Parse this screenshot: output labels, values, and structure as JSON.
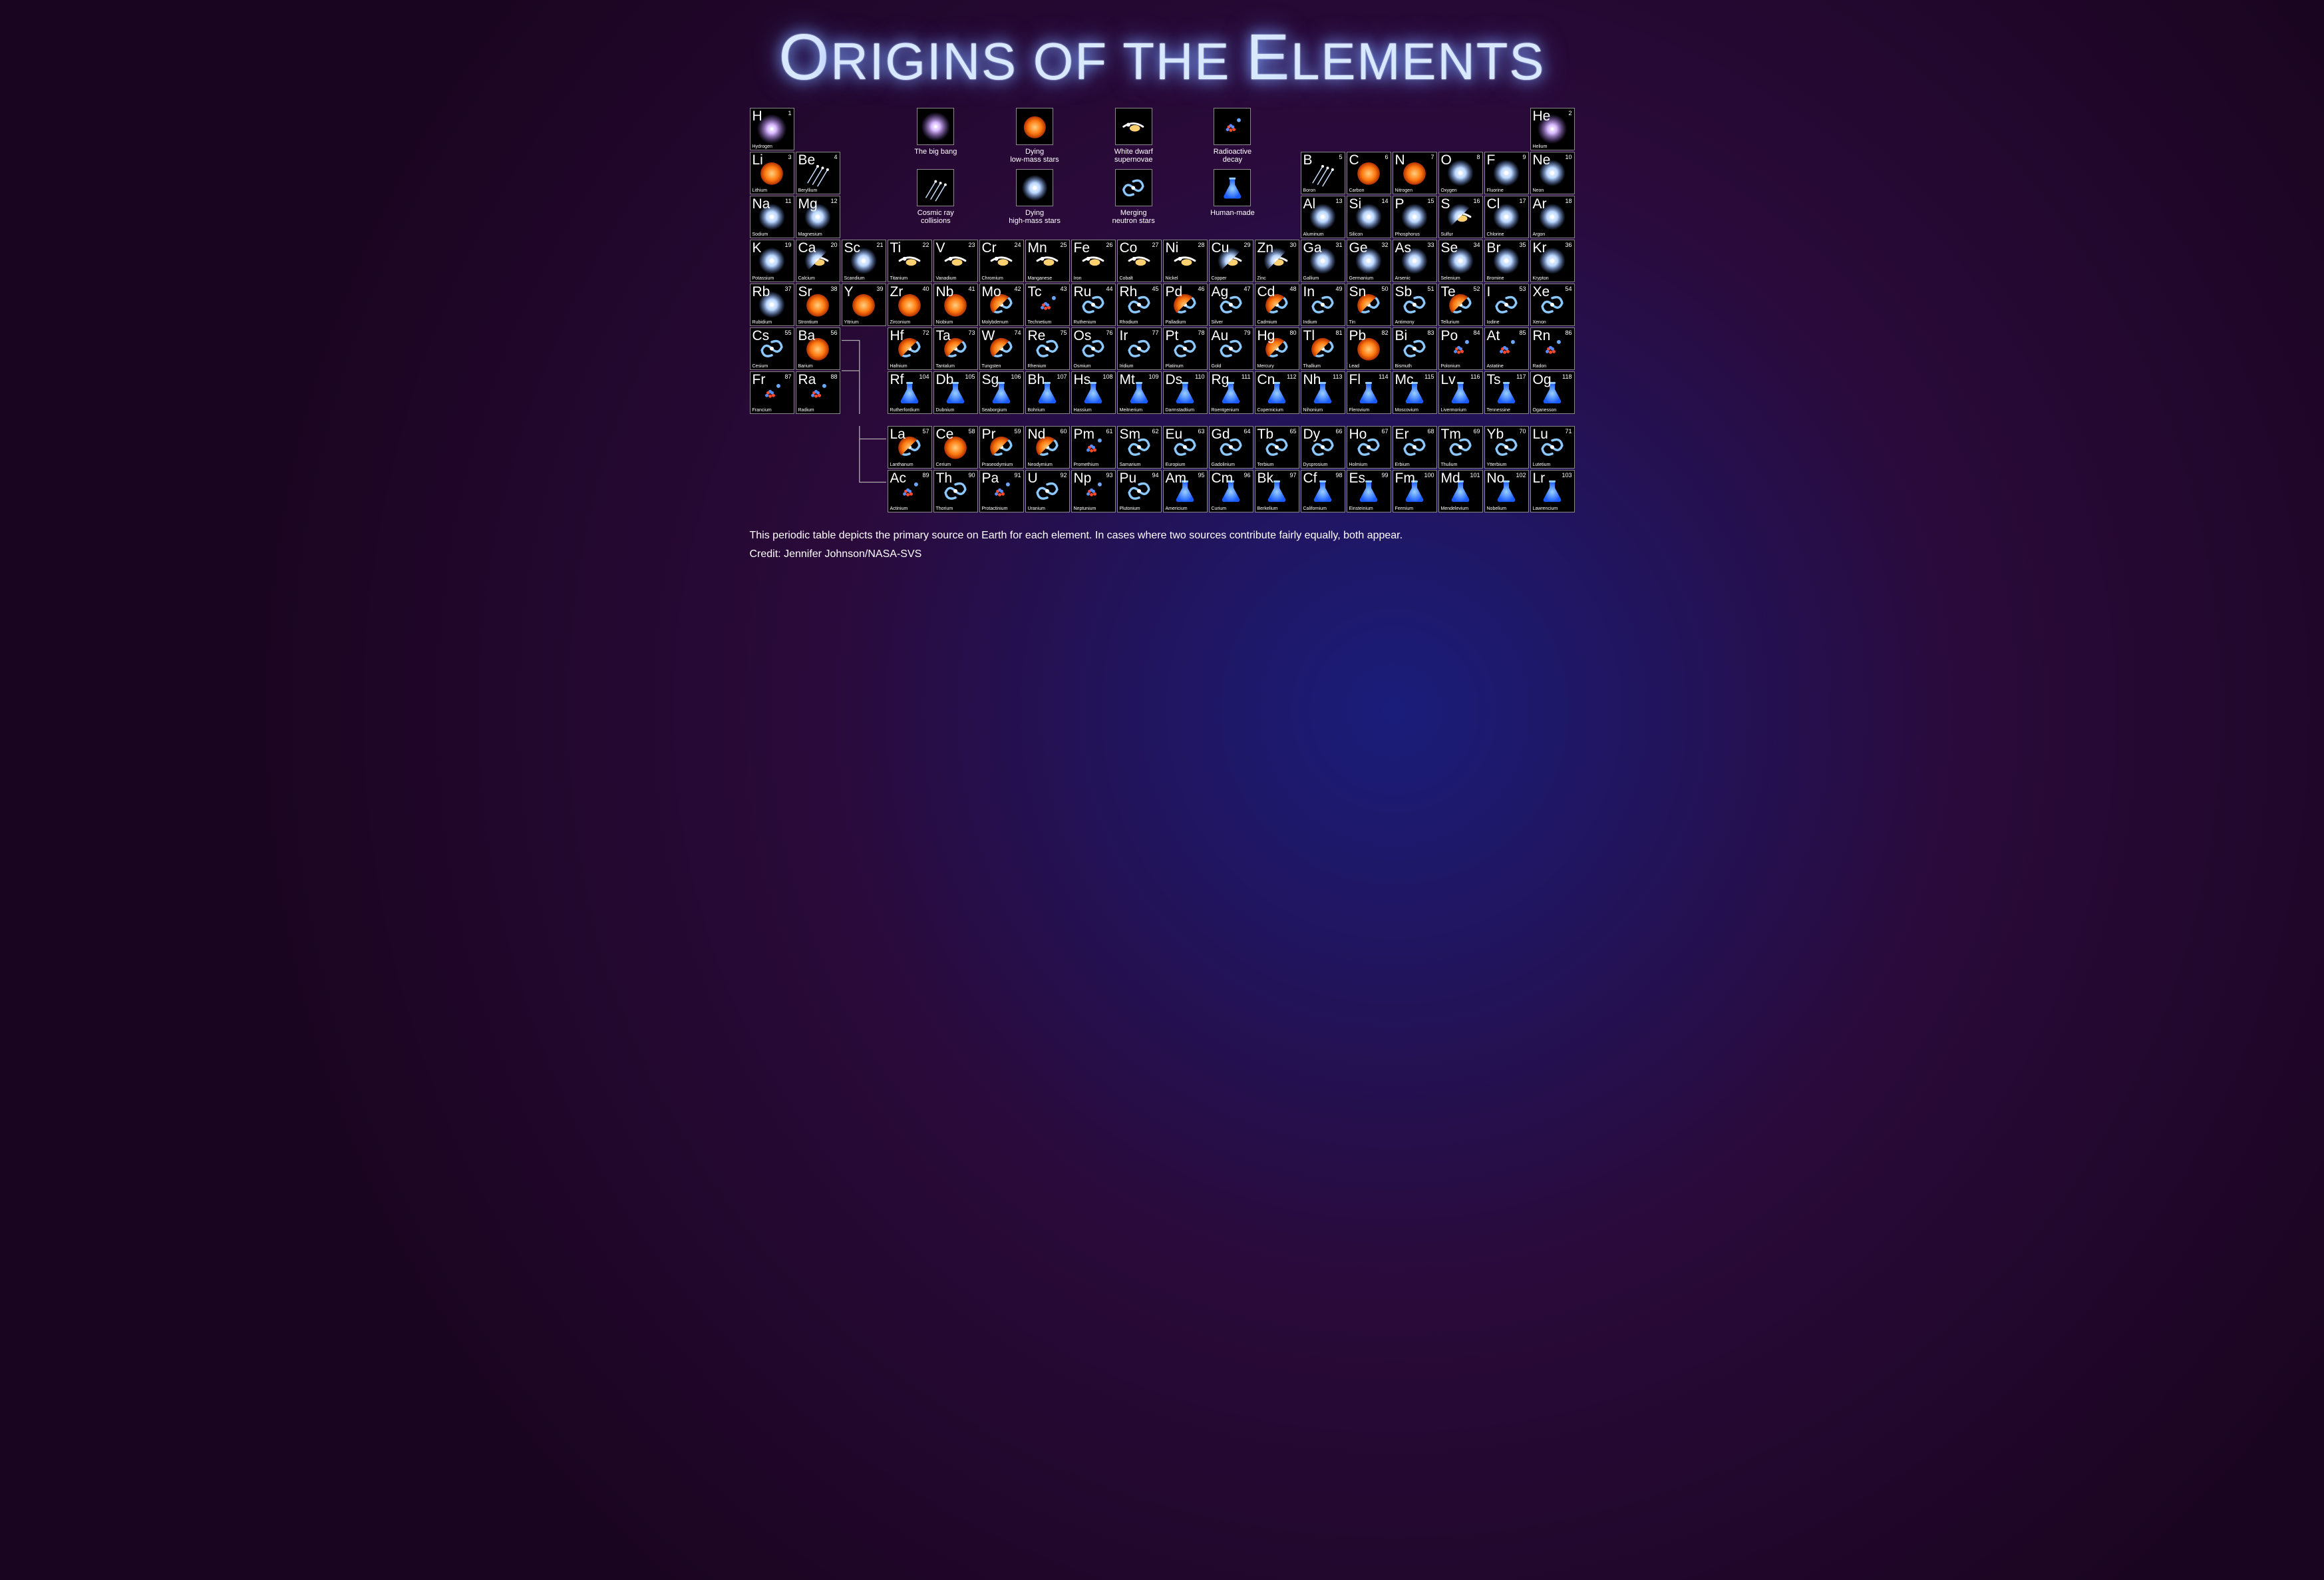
{
  "title_html": "<span class='big'>O</span>RIGINS OF THE <span class='big'>E</span>LEMENTS",
  "caption": "This periodic table depicts the primary source on Earth for each element. In cases where two sources contribute fairly equally, both appear.",
  "credit": "Credit: Jennifer Johnson/NASA-SVS",
  "colors": {
    "background_center": "#1a1d7a",
    "background_mid": "#2a0a3a",
    "background_edge": "#1a0520",
    "cell_border": "#888888",
    "cell_bg": "#000000",
    "text": "#ffffff",
    "title_glow": "#89b0ff"
  },
  "origin_icons": {
    "bigbang": {
      "label": "The big bang",
      "color": "#c9a8ff"
    },
    "lowmass": {
      "label": "Dying\nlow-mass stars",
      "color": "#ff8a1a"
    },
    "whitedwarf": {
      "label": "White dwarf\nsupernovae",
      "color": "#ffe38a"
    },
    "radioactive": {
      "label": "Radioactive\ndecay",
      "color": "#ff5a3a"
    },
    "cosmicray": {
      "label": "Cosmic ray\ncollisions",
      "color": "#b8d0ff"
    },
    "highmass": {
      "label": "Dying\nhigh-mass stars",
      "color": "#c0e0ff"
    },
    "merging": {
      "label": "Merging\nneutron stars",
      "color": "#6aa8ff"
    },
    "humanmade": {
      "label": "Human-made",
      "color": "#2a7cff"
    }
  },
  "legend_order": [
    [
      "bigbang",
      "lowmass",
      "whitedwarf",
      "radioactive"
    ],
    [
      "cosmicray",
      "highmass",
      "merging",
      "humanmade"
    ]
  ],
  "elements": [
    {
      "z": 1,
      "sym": "H",
      "name": "Hydrogen",
      "row": 1,
      "col": 1,
      "origin": [
        "bigbang"
      ]
    },
    {
      "z": 2,
      "sym": "He",
      "name": "Helium",
      "row": 1,
      "col": 18,
      "origin": [
        "bigbang"
      ]
    },
    {
      "z": 3,
      "sym": "Li",
      "name": "Lithium",
      "row": 2,
      "col": 1,
      "origin": [
        "lowmass"
      ]
    },
    {
      "z": 4,
      "sym": "Be",
      "name": "Beryllium",
      "row": 2,
      "col": 2,
      "origin": [
        "cosmicray"
      ]
    },
    {
      "z": 5,
      "sym": "B",
      "name": "Boron",
      "row": 2,
      "col": 13,
      "origin": [
        "cosmicray"
      ]
    },
    {
      "z": 6,
      "sym": "C",
      "name": "Carbon",
      "row": 2,
      "col": 14,
      "origin": [
        "lowmass"
      ]
    },
    {
      "z": 7,
      "sym": "N",
      "name": "Nitrogen",
      "row": 2,
      "col": 15,
      "origin": [
        "lowmass"
      ]
    },
    {
      "z": 8,
      "sym": "O",
      "name": "Oxygen",
      "row": 2,
      "col": 16,
      "origin": [
        "highmass"
      ]
    },
    {
      "z": 9,
      "sym": "F",
      "name": "Fluorine",
      "row": 2,
      "col": 17,
      "origin": [
        "highmass"
      ]
    },
    {
      "z": 10,
      "sym": "Ne",
      "name": "Neon",
      "row": 2,
      "col": 18,
      "origin": [
        "highmass"
      ]
    },
    {
      "z": 11,
      "sym": "Na",
      "name": "Sodium",
      "row": 3,
      "col": 1,
      "origin": [
        "highmass"
      ]
    },
    {
      "z": 12,
      "sym": "Mg",
      "name": "Magnesium",
      "row": 3,
      "col": 2,
      "origin": [
        "highmass"
      ]
    },
    {
      "z": 13,
      "sym": "Al",
      "name": "Aluminum",
      "row": 3,
      "col": 13,
      "origin": [
        "highmass"
      ]
    },
    {
      "z": 14,
      "sym": "Si",
      "name": "Silicon",
      "row": 3,
      "col": 14,
      "origin": [
        "highmass"
      ]
    },
    {
      "z": 15,
      "sym": "P",
      "name": "Phosphorus",
      "row": 3,
      "col": 15,
      "origin": [
        "highmass"
      ]
    },
    {
      "z": 16,
      "sym": "S",
      "name": "Sulfur",
      "row": 3,
      "col": 16,
      "origin": [
        "highmass",
        "whitedwarf"
      ]
    },
    {
      "z": 17,
      "sym": "Cl",
      "name": "Chlorine",
      "row": 3,
      "col": 17,
      "origin": [
        "highmass"
      ]
    },
    {
      "z": 18,
      "sym": "Ar",
      "name": "Argon",
      "row": 3,
      "col": 18,
      "origin": [
        "highmass"
      ]
    },
    {
      "z": 19,
      "sym": "K",
      "name": "Potassium",
      "row": 4,
      "col": 1,
      "origin": [
        "highmass"
      ]
    },
    {
      "z": 20,
      "sym": "Ca",
      "name": "Calcium",
      "row": 4,
      "col": 2,
      "origin": [
        "highmass",
        "whitedwarf"
      ]
    },
    {
      "z": 21,
      "sym": "Sc",
      "name": "Scandium",
      "row": 4,
      "col": 3,
      "origin": [
        "highmass"
      ]
    },
    {
      "z": 22,
      "sym": "Ti",
      "name": "Titanium",
      "row": 4,
      "col": 4,
      "origin": [
        "whitedwarf"
      ]
    },
    {
      "z": 23,
      "sym": "V",
      "name": "Vanadium",
      "row": 4,
      "col": 5,
      "origin": [
        "whitedwarf"
      ]
    },
    {
      "z": 24,
      "sym": "Cr",
      "name": "Chromium",
      "row": 4,
      "col": 6,
      "origin": [
        "whitedwarf"
      ]
    },
    {
      "z": 25,
      "sym": "Mn",
      "name": "Manganese",
      "row": 4,
      "col": 7,
      "origin": [
        "whitedwarf"
      ]
    },
    {
      "z": 26,
      "sym": "Fe",
      "name": "Iron",
      "row": 4,
      "col": 8,
      "origin": [
        "whitedwarf"
      ]
    },
    {
      "z": 27,
      "sym": "Co",
      "name": "Cobalt",
      "row": 4,
      "col": 9,
      "origin": [
        "whitedwarf"
      ]
    },
    {
      "z": 28,
      "sym": "Ni",
      "name": "Nickel",
      "row": 4,
      "col": 10,
      "origin": [
        "whitedwarf"
      ]
    },
    {
      "z": 29,
      "sym": "Cu",
      "name": "Copper",
      "row": 4,
      "col": 11,
      "origin": [
        "highmass",
        "whitedwarf"
      ]
    },
    {
      "z": 30,
      "sym": "Zn",
      "name": "Zinc",
      "row": 4,
      "col": 12,
      "origin": [
        "highmass",
        "whitedwarf"
      ]
    },
    {
      "z": 31,
      "sym": "Ga",
      "name": "Gallium",
      "row": 4,
      "col": 13,
      "origin": [
        "highmass"
      ]
    },
    {
      "z": 32,
      "sym": "Ge",
      "name": "Germanium",
      "row": 4,
      "col": 14,
      "origin": [
        "highmass"
      ]
    },
    {
      "z": 33,
      "sym": "As",
      "name": "Arsenic",
      "row": 4,
      "col": 15,
      "origin": [
        "highmass"
      ]
    },
    {
      "z": 34,
      "sym": "Se",
      "name": "Selenium",
      "row": 4,
      "col": 16,
      "origin": [
        "highmass"
      ]
    },
    {
      "z": 35,
      "sym": "Br",
      "name": "Bromine",
      "row": 4,
      "col": 17,
      "origin": [
        "highmass"
      ]
    },
    {
      "z": 36,
      "sym": "Kr",
      "name": "Krypton",
      "row": 4,
      "col": 18,
      "origin": [
        "highmass"
      ]
    },
    {
      "z": 37,
      "sym": "Rb",
      "name": "Rubidium",
      "row": 5,
      "col": 1,
      "origin": [
        "highmass"
      ]
    },
    {
      "z": 38,
      "sym": "Sr",
      "name": "Strontium",
      "row": 5,
      "col": 2,
      "origin": [
        "lowmass"
      ]
    },
    {
      "z": 39,
      "sym": "Y",
      "name": "Yttrium",
      "row": 5,
      "col": 3,
      "origin": [
        "lowmass"
      ]
    },
    {
      "z": 40,
      "sym": "Zr",
      "name": "Zirconium",
      "row": 5,
      "col": 4,
      "origin": [
        "lowmass"
      ]
    },
    {
      "z": 41,
      "sym": "Nb",
      "name": "Niobium",
      "row": 5,
      "col": 5,
      "origin": [
        "lowmass"
      ]
    },
    {
      "z": 42,
      "sym": "Mo",
      "name": "Molybdenum",
      "row": 5,
      "col": 6,
      "origin": [
        "lowmass",
        "merging"
      ]
    },
    {
      "z": 43,
      "sym": "Tc",
      "name": "Technetium",
      "row": 5,
      "col": 7,
      "origin": [
        "radioactive"
      ]
    },
    {
      "z": 44,
      "sym": "Ru",
      "name": "Ruthenium",
      "row": 5,
      "col": 8,
      "origin": [
        "merging"
      ]
    },
    {
      "z": 45,
      "sym": "Rh",
      "name": "Rhodium",
      "row": 5,
      "col": 9,
      "origin": [
        "merging"
      ]
    },
    {
      "z": 46,
      "sym": "Pd",
      "name": "Palladium",
      "row": 5,
      "col": 10,
      "origin": [
        "lowmass",
        "merging"
      ]
    },
    {
      "z": 47,
      "sym": "Ag",
      "name": "Silver",
      "row": 5,
      "col": 11,
      "origin": [
        "merging"
      ]
    },
    {
      "z": 48,
      "sym": "Cd",
      "name": "Cadmium",
      "row": 5,
      "col": 12,
      "origin": [
        "lowmass",
        "merging"
      ]
    },
    {
      "z": 49,
      "sym": "In",
      "name": "Indium",
      "row": 5,
      "col": 13,
      "origin": [
        "merging"
      ]
    },
    {
      "z": 50,
      "sym": "Sn",
      "name": "Tin",
      "row": 5,
      "col": 14,
      "origin": [
        "lowmass",
        "merging"
      ]
    },
    {
      "z": 51,
      "sym": "Sb",
      "name": "Antimony",
      "row": 5,
      "col": 15,
      "origin": [
        "merging"
      ]
    },
    {
      "z": 52,
      "sym": "Te",
      "name": "Tellurium",
      "row": 5,
      "col": 16,
      "origin": [
        "lowmass",
        "merging"
      ]
    },
    {
      "z": 53,
      "sym": "I",
      "name": "Iodine",
      "row": 5,
      "col": 17,
      "origin": [
        "merging"
      ]
    },
    {
      "z": 54,
      "sym": "Xe",
      "name": "Xenon",
      "row": 5,
      "col": 18,
      "origin": [
        "merging"
      ]
    },
    {
      "z": 55,
      "sym": "Cs",
      "name": "Cesium",
      "row": 6,
      "col": 1,
      "origin": [
        "merging"
      ]
    },
    {
      "z": 56,
      "sym": "Ba",
      "name": "Barium",
      "row": 6,
      "col": 2,
      "origin": [
        "lowmass"
      ]
    },
    {
      "z": 72,
      "sym": "Hf",
      "name": "Hafnium",
      "row": 6,
      "col": 4,
      "origin": [
        "lowmass",
        "merging"
      ]
    },
    {
      "z": 73,
      "sym": "Ta",
      "name": "Tantalum",
      "row": 6,
      "col": 5,
      "origin": [
        "lowmass",
        "merging"
      ]
    },
    {
      "z": 74,
      "sym": "W",
      "name": "Tungsten",
      "row": 6,
      "col": 6,
      "origin": [
        "lowmass",
        "merging"
      ]
    },
    {
      "z": 75,
      "sym": "Re",
      "name": "Rhenium",
      "row": 6,
      "col": 7,
      "origin": [
        "merging"
      ]
    },
    {
      "z": 76,
      "sym": "Os",
      "name": "Osmium",
      "row": 6,
      "col": 8,
      "origin": [
        "merging"
      ]
    },
    {
      "z": 77,
      "sym": "Ir",
      "name": "Iridium",
      "row": 6,
      "col": 9,
      "origin": [
        "merging"
      ]
    },
    {
      "z": 78,
      "sym": "Pt",
      "name": "Platinum",
      "row": 6,
      "col": 10,
      "origin": [
        "merging"
      ]
    },
    {
      "z": 79,
      "sym": "Au",
      "name": "Gold",
      "row": 6,
      "col": 11,
      "origin": [
        "merging"
      ]
    },
    {
      "z": 80,
      "sym": "Hg",
      "name": "Mercury",
      "row": 6,
      "col": 12,
      "origin": [
        "lowmass",
        "merging"
      ]
    },
    {
      "z": 81,
      "sym": "Tl",
      "name": "Thallium",
      "row": 6,
      "col": 13,
      "origin": [
        "lowmass",
        "merging"
      ]
    },
    {
      "z": 82,
      "sym": "Pb",
      "name": "Lead",
      "row": 6,
      "col": 14,
      "origin": [
        "lowmass"
      ]
    },
    {
      "z": 83,
      "sym": "Bi",
      "name": "Bismuth",
      "row": 6,
      "col": 15,
      "origin": [
        "merging"
      ]
    },
    {
      "z": 84,
      "sym": "Po",
      "name": "Polonium",
      "row": 6,
      "col": 16,
      "origin": [
        "radioactive"
      ]
    },
    {
      "z": 85,
      "sym": "At",
      "name": "Astatine",
      "row": 6,
      "col": 17,
      "origin": [
        "radioactive"
      ]
    },
    {
      "z": 86,
      "sym": "Rn",
      "name": "Radon",
      "row": 6,
      "col": 18,
      "origin": [
        "radioactive"
      ]
    },
    {
      "z": 87,
      "sym": "Fr",
      "name": "Francium",
      "row": 7,
      "col": 1,
      "origin": [
        "radioactive"
      ]
    },
    {
      "z": 88,
      "sym": "Ra",
      "name": "Radium",
      "row": 7,
      "col": 2,
      "origin": [
        "radioactive"
      ]
    },
    {
      "z": 104,
      "sym": "Rf",
      "name": "Rutherfordium",
      "row": 7,
      "col": 4,
      "origin": [
        "humanmade"
      ]
    },
    {
      "z": 105,
      "sym": "Db",
      "name": "Dubnium",
      "row": 7,
      "col": 5,
      "origin": [
        "humanmade"
      ]
    },
    {
      "z": 106,
      "sym": "Sg",
      "name": "Seaborgium",
      "row": 7,
      "col": 6,
      "origin": [
        "humanmade"
      ]
    },
    {
      "z": 107,
      "sym": "Bh",
      "name": "Bohrium",
      "row": 7,
      "col": 7,
      "origin": [
        "humanmade"
      ]
    },
    {
      "z": 108,
      "sym": "Hs",
      "name": "Hassium",
      "row": 7,
      "col": 8,
      "origin": [
        "humanmade"
      ]
    },
    {
      "z": 109,
      "sym": "Mt",
      "name": "Meitnerium",
      "row": 7,
      "col": 9,
      "origin": [
        "humanmade"
      ]
    },
    {
      "z": 110,
      "sym": "Ds",
      "name": "Darmstadtium",
      "row": 7,
      "col": 10,
      "origin": [
        "humanmade"
      ]
    },
    {
      "z": 111,
      "sym": "Rg",
      "name": "Roentgenium",
      "row": 7,
      "col": 11,
      "origin": [
        "humanmade"
      ]
    },
    {
      "z": 112,
      "sym": "Cn",
      "name": "Copernicium",
      "row": 7,
      "col": 12,
      "origin": [
        "humanmade"
      ]
    },
    {
      "z": 113,
      "sym": "Nh",
      "name": "Nihonium",
      "row": 7,
      "col": 13,
      "origin": [
        "humanmade"
      ]
    },
    {
      "z": 114,
      "sym": "Fl",
      "name": "Flerovium",
      "row": 7,
      "col": 14,
      "origin": [
        "humanmade"
      ]
    },
    {
      "z": 115,
      "sym": "Mc",
      "name": "Moscovium",
      "row": 7,
      "col": 15,
      "origin": [
        "humanmade"
      ]
    },
    {
      "z": 116,
      "sym": "Lv",
      "name": "Livermorium",
      "row": 7,
      "col": 16,
      "origin": [
        "humanmade"
      ]
    },
    {
      "z": 117,
      "sym": "Ts",
      "name": "Tennessine",
      "row": 7,
      "col": 17,
      "origin": [
        "humanmade"
      ]
    },
    {
      "z": 118,
      "sym": "Og",
      "name": "Oganesson",
      "row": 7,
      "col": 18,
      "origin": [
        "humanmade"
      ]
    },
    {
      "z": 57,
      "sym": "La",
      "name": "Lanthanum",
      "row": 8,
      "col": 4,
      "origin": [
        "lowmass",
        "merging"
      ]
    },
    {
      "z": 58,
      "sym": "Ce",
      "name": "Cerium",
      "row": 8,
      "col": 5,
      "origin": [
        "lowmass"
      ]
    },
    {
      "z": 59,
      "sym": "Pr",
      "name": "Praseodymium",
      "row": 8,
      "col": 6,
      "origin": [
        "lowmass",
        "merging"
      ]
    },
    {
      "z": 60,
      "sym": "Nd",
      "name": "Neodymium",
      "row": 8,
      "col": 7,
      "origin": [
        "lowmass",
        "merging"
      ]
    },
    {
      "z": 61,
      "sym": "Pm",
      "name": "Promethium",
      "row": 8,
      "col": 8,
      "origin": [
        "radioactive"
      ]
    },
    {
      "z": 62,
      "sym": "Sm",
      "name": "Samarium",
      "row": 8,
      "col": 9,
      "origin": [
        "merging"
      ]
    },
    {
      "z": 63,
      "sym": "Eu",
      "name": "Europium",
      "row": 8,
      "col": 10,
      "origin": [
        "merging"
      ]
    },
    {
      "z": 64,
      "sym": "Gd",
      "name": "Gadolinium",
      "row": 8,
      "col": 11,
      "origin": [
        "merging"
      ]
    },
    {
      "z": 65,
      "sym": "Tb",
      "name": "Terbium",
      "row": 8,
      "col": 12,
      "origin": [
        "merging"
      ]
    },
    {
      "z": 66,
      "sym": "Dy",
      "name": "Dysprosium",
      "row": 8,
      "col": 13,
      "origin": [
        "merging"
      ]
    },
    {
      "z": 67,
      "sym": "Ho",
      "name": "Holmium",
      "row": 8,
      "col": 14,
      "origin": [
        "merging"
      ]
    },
    {
      "z": 68,
      "sym": "Er",
      "name": "Erbium",
      "row": 8,
      "col": 15,
      "origin": [
        "merging"
      ]
    },
    {
      "z": 69,
      "sym": "Tm",
      "name": "Thulium",
      "row": 8,
      "col": 16,
      "origin": [
        "merging"
      ]
    },
    {
      "z": 70,
      "sym": "Yb",
      "name": "Ytterbium",
      "row": 8,
      "col": 17,
      "origin": [
        "merging"
      ]
    },
    {
      "z": 71,
      "sym": "Lu",
      "name": "Lutetium",
      "row": 8,
      "col": 18,
      "origin": [
        "merging"
      ]
    },
    {
      "z": 89,
      "sym": "Ac",
      "name": "Actinium",
      "row": 9,
      "col": 4,
      "origin": [
        "radioactive"
      ]
    },
    {
      "z": 90,
      "sym": "Th",
      "name": "Thorium",
      "row": 9,
      "col": 5,
      "origin": [
        "merging"
      ]
    },
    {
      "z": 91,
      "sym": "Pa",
      "name": "Protactinium",
      "row": 9,
      "col": 6,
      "origin": [
        "radioactive"
      ]
    },
    {
      "z": 92,
      "sym": "U",
      "name": "Uranium",
      "row": 9,
      "col": 7,
      "origin": [
        "merging"
      ]
    },
    {
      "z": 93,
      "sym": "Np",
      "name": "Neptunium",
      "row": 9,
      "col": 8,
      "origin": [
        "radioactive"
      ]
    },
    {
      "z": 94,
      "sym": "Pu",
      "name": "Plutonium",
      "row": 9,
      "col": 9,
      "origin": [
        "merging"
      ]
    },
    {
      "z": 95,
      "sym": "Am",
      "name": "Americium",
      "row": 9,
      "col": 10,
      "origin": [
        "humanmade"
      ]
    },
    {
      "z": 96,
      "sym": "Cm",
      "name": "Curium",
      "row": 9,
      "col": 11,
      "origin": [
        "humanmade"
      ]
    },
    {
      "z": 97,
      "sym": "Bk",
      "name": "Berkelium",
      "row": 9,
      "col": 12,
      "origin": [
        "humanmade"
      ]
    },
    {
      "z": 98,
      "sym": "Cf",
      "name": "Californium",
      "row": 9,
      "col": 13,
      "origin": [
        "humanmade"
      ]
    },
    {
      "z": 99,
      "sym": "Es",
      "name": "Einsteinium",
      "row": 9,
      "col": 14,
      "origin": [
        "humanmade"
      ]
    },
    {
      "z": 100,
      "sym": "Fm",
      "name": "Fermium",
      "row": 9,
      "col": 15,
      "origin": [
        "humanmade"
      ]
    },
    {
      "z": 101,
      "sym": "Md",
      "name": "Mendelevium",
      "row": 9,
      "col": 16,
      "origin": [
        "humanmade"
      ]
    },
    {
      "z": 102,
      "sym": "No",
      "name": "Nobelium",
      "row": 9,
      "col": 17,
      "origin": [
        "humanmade"
      ]
    },
    {
      "z": 103,
      "sym": "Lr",
      "name": "Lawrencium",
      "row": 9,
      "col": 18,
      "origin": [
        "humanmade"
      ]
    }
  ]
}
